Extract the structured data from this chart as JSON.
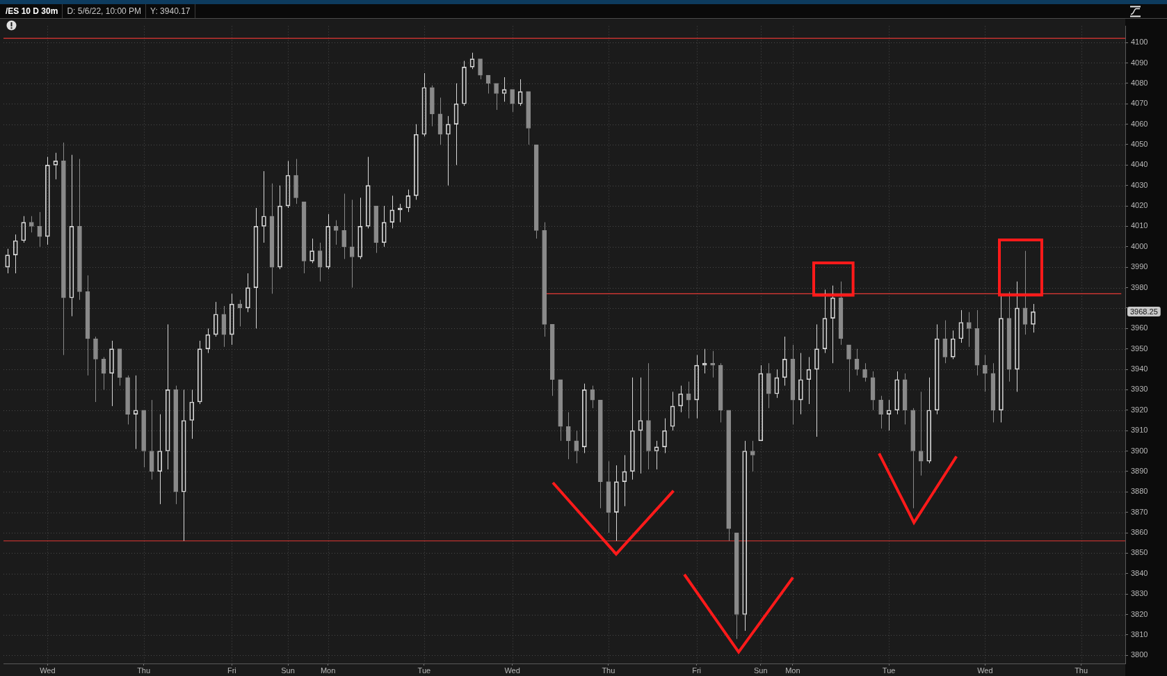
{
  "chart_data": {
    "type": "candlestick",
    "title": "/ES 10 D 30m",
    "annotations": [
      "D: 5/6/22, 10:00 PM",
      "Y: 3940.17",
      "3968.25"
    ],
    "categories": [
      null,
      null,
      null,
      null,
      null,
      "Wed",
      null,
      null,
      null,
      null,
      null,
      null,
      null,
      null,
      null,
      null,
      null,
      "Thu",
      null,
      null,
      null,
      null,
      null,
      null,
      null,
      null,
      null,
      null,
      "Fri",
      null,
      null,
      null,
      null,
      null,
      null,
      "Sun",
      null,
      null,
      null,
      null,
      "Mon",
      null,
      null,
      null,
      null,
      null,
      null,
      null,
      null,
      null,
      null,
      null,
      "Tue",
      null,
      null,
      null,
      null,
      null,
      null,
      null,
      null,
      null,
      null,
      "Wed",
      null,
      null,
      null,
      null,
      null,
      null,
      null,
      null,
      null,
      null,
      null,
      "Thu",
      null,
      null,
      null,
      null,
      null,
      null,
      null,
      null,
      null,
      null,
      "Fri",
      null,
      null,
      null,
      null,
      null,
      null,
      null,
      "Sun",
      null,
      null,
      null,
      "Mon",
      null,
      null,
      null,
      null,
      null,
      null,
      null,
      null,
      null,
      null,
      null,
      "Tue",
      null,
      null,
      null,
      null,
      null,
      null,
      null,
      null,
      null,
      null,
      null,
      "Wed",
      null,
      null,
      null,
      null,
      null,
      null,
      null,
      null,
      null,
      null,
      null,
      "Thu",
      null,
      null,
      null,
      null,
      null
    ],
    "series": [
      {
        "colors": [
          "#d8d8d8",
          "#d8d8d8",
          "#d8d8d8",
          "#8a8a8a",
          "#8a8a8a",
          "#d8d8d8",
          "#d8d8d8",
          "#8a8a8a",
          "#d8d8d8",
          "#8a8a8a",
          "#8a8a8a",
          "#8a8a8a",
          "#8a8a8a",
          "#d8d8d8",
          "#8a8a8a",
          "#8a8a8a",
          "#d8d8d8",
          "#8a8a8a",
          "#8a8a8a",
          "#d8d8d8",
          "#d8d8d8",
          "#8a8a8a",
          "#d8d8d8",
          "#d8d8d8",
          "#d8d8d8",
          "#d8d8d8",
          "#d8d8d8",
          "#8a8a8a",
          "#d8d8d8",
          "#8a8a8a",
          "#d8d8d8",
          "#d8d8d8",
          "#d8d8d8",
          "#8a8a8a",
          "#d8d8d8",
          "#d8d8d8",
          "#8a8a8a",
          "#8a8a8a",
          "#d8d8d8",
          "#8a8a8a",
          "#d8d8d8",
          "#8a8a8a",
          "#8a8a8a",
          "#8a8a8a",
          "#d8d8d8",
          "#d8d8d8",
          "#8a8a8a",
          "#d8d8d8",
          "#d8d8d8",
          "#d8d8d8",
          "#d8d8d8",
          "#d8d8d8",
          "#d8d8d8",
          "#8a8a8a",
          "#8a8a8a",
          "#d8d8d8",
          "#d8d8d8",
          "#d8d8d8",
          "#d8d8d8",
          "#8a8a8a",
          "#8a8a8a",
          "#8a8a8a",
          "#d8d8d8",
          "#8a8a8a",
          "#d8d8d8",
          "#8a8a8a",
          "#8a8a8a",
          "#8a8a8a",
          "#8a8a8a",
          "#8a8a8a",
          "#8a8a8a",
          "#8a8a8a",
          "#d8d8d8",
          "#8a8a8a",
          "#8a8a8a",
          "#8a8a8a",
          "#d8d8d8",
          "#d8d8d8",
          "#d8d8d8",
          "#d8d8d8",
          "#8a8a8a",
          "#d8d8d8",
          "#d8d8d8",
          "#d8d8d8",
          "#d8d8d8",
          "#8a8a8a",
          "#d8d8d8",
          "#d8d8d8",
          "#8a8a8a",
          "#8a8a8a",
          "#8a8a8a",
          "#8a8a8a",
          "#d8d8d8",
          "#8a8a8a",
          "#d8d8d8",
          "#8a8a8a",
          "#d8d8d8",
          "#d8d8d8",
          "#8a8a8a",
          "#d8d8d8",
          "#d8d8d8",
          "#d8d8d8",
          "#d8d8d8",
          "#d8d8d8",
          "#8a8a8a",
          "#8a8a8a",
          "#8a8a8a",
          "#8a8a8a",
          "#8a8a8a",
          "#8a8a8a",
          "#d8d8d8",
          "#d8d8d8",
          "#8a8a8a",
          "#8a8a8a",
          "#8a8a8a",
          "#d8d8d8",
          "#d8d8d8",
          "#8a8a8a",
          "#d8d8d8",
          "#d8d8d8",
          "#8a8a8a",
          "#8a8a8a",
          "#8a8a8a",
          "#8a8a8a",
          "#d8d8d8",
          "#8a8a8a",
          "#d8d8d8",
          "#8a8a8a",
          "#d8d8d8",
          null,
          null,
          null,
          null,
          null,
          null,
          null,
          null,
          null,
          null,
          null
        ],
        "ohlc": [
          [
            3990,
            3999,
            3987,
            3996
          ],
          [
            3996,
            4006,
            3987,
            4003
          ],
          [
            4003,
            4015,
            4002,
            4012
          ],
          [
            4012,
            4015,
            4007,
            4010
          ],
          [
            4010,
            4017,
            4000,
            4005
          ],
          [
            4005,
            4044,
            4001,
            4040
          ],
          [
            4040,
            4046,
            4033,
            4042
          ],
          [
            4042,
            4051,
            3947,
            3975
          ],
          [
            3975,
            4045,
            3966,
            4010
          ],
          [
            4010,
            4043,
            3974,
            3978
          ],
          [
            3978,
            3986,
            3937,
            3955
          ],
          [
            3955,
            3956,
            3924,
            3945
          ],
          [
            3945,
            3946,
            3930,
            3938
          ],
          [
            3938,
            3954,
            3922,
            3950
          ],
          [
            3950,
            3950,
            3932,
            3936
          ],
          [
            3936,
            3937,
            3913,
            3918
          ],
          [
            3918,
            3937,
            3901,
            3920
          ],
          [
            3920,
            3920,
            3892,
            3900
          ],
          [
            3900,
            3925,
            3886,
            3890
          ],
          [
            3890,
            3918,
            3874,
            3900
          ],
          [
            3900,
            3962,
            3891,
            3930
          ],
          [
            3930,
            3932,
            3874,
            3880
          ],
          [
            3880,
            3930,
            3856,
            3915
          ],
          [
            3915,
            3930,
            3906,
            3924
          ],
          [
            3924,
            3954,
            3923,
            3950
          ],
          [
            3950,
            3960,
            3948,
            3957
          ],
          [
            3957,
            3973,
            3956,
            3967
          ],
          [
            3967,
            3971,
            3951,
            3957
          ],
          [
            3957,
            3977,
            3952,
            3972
          ],
          [
            3972,
            3974,
            3961,
            3970
          ],
          [
            3970,
            3987,
            3968,
            3980
          ],
          [
            3980,
            4019,
            3960,
            4010
          ],
          [
            4010,
            4037,
            4002,
            4015
          ],
          [
            4015,
            4031,
            3977,
            3990
          ],
          [
            3990,
            4030,
            3989,
            4020
          ],
          [
            4020,
            4042,
            4019,
            4035
          ],
          [
            4035,
            4043,
            4021,
            4024
          ],
          [
            4022,
            4022,
            3987,
            3993
          ],
          [
            3993,
            4004,
            3992,
            3998
          ],
          [
            3998,
            4002,
            3983,
            3990
          ],
          [
            3990,
            4016,
            3989,
            4010
          ],
          [
            4010,
            4013,
            4001,
            4008
          ],
          [
            4008,
            4026,
            3994,
            4000
          ],
          [
            4000,
            4023,
            3980,
            3995
          ],
          [
            3995,
            4024,
            3994,
            4010
          ],
          [
            4010,
            4044,
            4009,
            4030
          ],
          [
            4020,
            4020,
            3997,
            4002
          ],
          [
            4002,
            4020,
            4000,
            4012
          ],
          [
            4012,
            4025,
            4009,
            4018
          ],
          [
            4018,
            4021,
            4012,
            4019
          ],
          [
            4019,
            4028,
            4017,
            4025
          ],
          [
            4025,
            4060,
            4023,
            4055
          ],
          [
            4055,
            4085,
            4054,
            4078
          ],
          [
            4078,
            4079,
            4059,
            4065
          ],
          [
            4065,
            4073,
            4050,
            4055
          ],
          [
            4055,
            4064,
            4030,
            4060
          ],
          [
            4060,
            4080,
            4040,
            4070
          ],
          [
            4070,
            4091,
            4069,
            4088
          ],
          [
            4088,
            4095,
            4087,
            4092
          ],
          [
            4092,
            4092,
            4082,
            4084
          ],
          [
            4084,
            4084,
            4075,
            4080
          ],
          [
            4080,
            4080,
            4067,
            4075
          ],
          [
            4075,
            4083,
            4071,
            4077
          ],
          [
            4077,
            4077,
            4066,
            4070
          ],
          [
            4070,
            4082,
            4069,
            4076
          ],
          [
            4076,
            4076,
            4050,
            4058
          ],
          [
            4050,
            4050,
            4004,
            4008
          ],
          [
            4008,
            4012,
            3956,
            3962
          ],
          [
            3962,
            3962,
            3927,
            3935
          ],
          [
            3935,
            3935,
            3905,
            3912
          ],
          [
            3912,
            3919,
            3896,
            3905
          ],
          [
            3905,
            3910,
            3894,
            3900
          ],
          [
            3902,
            3933,
            3899,
            3930
          ],
          [
            3930,
            3932,
            3921,
            3925
          ],
          [
            3925,
            3925,
            3872,
            3885
          ],
          [
            3885,
            3895,
            3860,
            3870
          ],
          [
            3870,
            3893,
            3856,
            3885
          ],
          [
            3885,
            3898,
            3873,
            3890
          ],
          [
            3890,
            3936,
            3886,
            3910
          ],
          [
            3910,
            3936,
            3889,
            3915
          ],
          [
            3915,
            3943,
            3891,
            3900
          ],
          [
            3900,
            3905,
            3891,
            3902
          ],
          [
            3902,
            3916,
            3899,
            3910
          ],
          [
            3912,
            3929,
            3910,
            3922
          ],
          [
            3922,
            3932,
            3919,
            3928
          ],
          [
            3928,
            3934,
            3916,
            3925
          ],
          [
            3925,
            3947,
            3916,
            3942
          ],
          [
            3942,
            3950,
            3938,
            3943
          ],
          [
            3943,
            3949,
            3936,
            3942
          ],
          [
            3942,
            3943,
            3914,
            3920
          ],
          [
            3920,
            3920,
            3856,
            3862
          ],
          [
            3860,
            3860,
            3808,
            3820
          ],
          [
            3820,
            3905,
            3812,
            3900
          ],
          [
            3900,
            3905,
            3890,
            3898
          ],
          [
            3905,
            3942,
            3905,
            3938
          ],
          [
            3938,
            3943,
            3921,
            3928
          ],
          [
            3928,
            3940,
            3926,
            3936
          ],
          [
            3936,
            3956,
            3932,
            3945
          ],
          [
            3945,
            3952,
            3913,
            3925
          ],
          [
            3925,
            3948,
            3918,
            3935
          ],
          [
            3935,
            3946,
            3923,
            3940
          ],
          [
            3940,
            3962,
            3907,
            3950
          ],
          [
            3950,
            3979,
            3948,
            3965
          ],
          [
            3965,
            3981,
            3943,
            3975
          ],
          [
            3975,
            3983,
            3952,
            3955
          ],
          [
            3952,
            3952,
            3929,
            3945
          ],
          [
            3945,
            3950,
            3937,
            3940
          ],
          [
            3940,
            3943,
            3934,
            3936
          ],
          [
            3936,
            3939,
            3920,
            3925
          ],
          [
            3925,
            3927,
            3911,
            3918
          ],
          [
            3918,
            3925,
            3910,
            3920
          ],
          [
            3920,
            3939,
            3918,
            3935
          ],
          [
            3935,
            3938,
            3913,
            3920
          ],
          [
            3920,
            3921,
            3872,
            3900
          ],
          [
            3900,
            3929,
            3888,
            3895
          ],
          [
            3895,
            3936,
            3894,
            3920
          ],
          [
            3920,
            3962,
            3918,
            3955
          ],
          [
            3955,
            3964,
            3943,
            3946
          ],
          [
            3946,
            3959,
            3945,
            3955
          ],
          [
            3955,
            3969,
            3953,
            3963
          ],
          [
            3963,
            3968,
            3951,
            3960
          ],
          [
            3960,
            3969,
            3937,
            3942
          ],
          [
            3942,
            3947,
            3929,
            3938
          ],
          [
            3938,
            3943,
            3914,
            3920
          ],
          [
            3920,
            3976,
            3914,
            3965
          ],
          [
            3965,
            3978,
            3934,
            3940
          ],
          [
            3940,
            3983,
            3929,
            3970
          ],
          [
            3970,
            3998,
            3957,
            3962
          ],
          [
            3962,
            3972,
            3958,
            3968.25
          ],
          null,
          null,
          null,
          null,
          null,
          null,
          null,
          null,
          null,
          null,
          null
        ]
      },
      {
        "type": "line",
        "color": "#e53935",
        "values": [
          null,
          null,
          null,
          null,
          null,
          null,
          null,
          null,
          null,
          null,
          null,
          null,
          null,
          null,
          null,
          null,
          null,
          null,
          null,
          null,
          null,
          null,
          null,
          null,
          null,
          null,
          null,
          null,
          null,
          null,
          null,
          null,
          null,
          null,
          null,
          null,
          null,
          null,
          null,
          null,
          null,
          null,
          null,
          null,
          null,
          null,
          null,
          null,
          null,
          null,
          null,
          null,
          null,
          null,
          null,
          null,
          null,
          null,
          null,
          null,
          null,
          null,
          null,
          null,
          null,
          null,
          null,
          3977,
          3977,
          3977,
          3977,
          3977,
          3977,
          3977,
          3977,
          3977,
          3977,
          3977,
          3977,
          3977,
          3977,
          3977,
          3977,
          3977,
          3977,
          3977,
          3977,
          3977,
          3977,
          3977,
          3977,
          3977,
          3977,
          3977,
          3977,
          3977,
          3977,
          3977,
          3977,
          3977,
          3977,
          3977,
          3977,
          3977,
          3977,
          3977,
          3977,
          3977,
          3977,
          3977,
          3977,
          3977,
          3977,
          3977,
          3977,
          3977,
          3977,
          3977,
          3977,
          3977,
          3977,
          3977,
          3977,
          3977,
          3977,
          3977,
          3977,
          3977,
          3977,
          3977,
          3977,
          3977,
          3977,
          3977,
          3977,
          3977,
          3977,
          3977,
          3977,
          3977
        ]
      }
    ],
    "ylim": [
      3796,
      4108
    ],
    "yticks": [
      3800,
      3810,
      3820,
      3830,
      3840,
      3850,
      3860,
      3870,
      3880,
      3890,
      3900,
      3910,
      3920,
      3930,
      3940,
      3950,
      3960,
      {
        "value": 3970,
        "label": null
      },
      3980,
      3990,
      4000,
      4010,
      4020,
      4030,
      4040,
      4050,
      4060,
      4070,
      4080,
      4090,
      4100
    ],
    "ref_lines": [
      {
        "axis": "y",
        "value": 3856,
        "color": "#e53935"
      },
      {
        "axis": "y",
        "value": 4102,
        "color": "#e53935"
      }
    ],
    "grid": true
  }
}
